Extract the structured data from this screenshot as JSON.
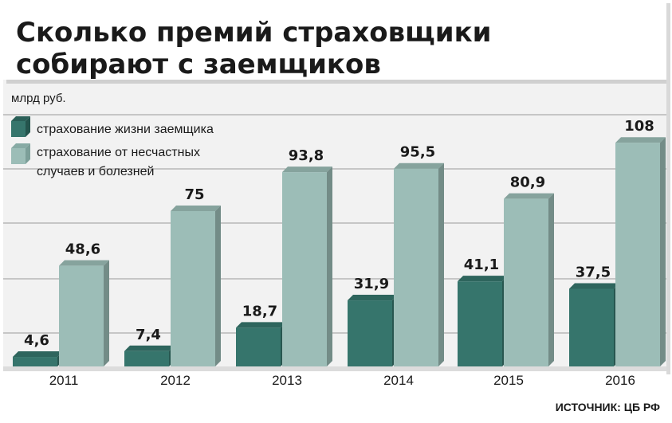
{
  "chart_data": {
    "type": "bar",
    "title": "Сколько премий страховщики собирают с заемщиков",
    "title_lines": [
      "Сколько премий страховщики",
      "собирают с заемщиков"
    ],
    "unit": "млрд руб.",
    "categories": [
      "2011",
      "2012",
      "2013",
      "2014",
      "2015",
      "2016"
    ],
    "series": [
      {
        "name": "страхование жизни заемщика",
        "name_lines": [
          "страхование жизни заемщика"
        ],
        "color": "#36756c",
        "values": [
          4.6,
          7.4,
          18.7,
          31.9,
          41.1,
          37.5
        ],
        "labels": [
          "4,6",
          "7,4",
          "18,7",
          "31,9",
          "41,1",
          "37,5"
        ]
      },
      {
        "name": "страхование от несчастных случаев и болезней",
        "name_lines": [
          "страхование от несчастных",
          "случаев и болезней"
        ],
        "color": "#9cbdb7",
        "values": [
          48.6,
          75,
          93.8,
          95.5,
          80.9,
          108
        ],
        "labels": [
          "48,6",
          "75",
          "93,8",
          "95,5",
          "80,9",
          "108"
        ]
      }
    ],
    "ylim": [
      0,
      110
    ],
    "grid": true,
    "legend_position": "top-left",
    "source": "ИСТОЧНИК: ЦБ РФ",
    "colors": {
      "background": "#f2f2f2",
      "grid": "#9a9a9a",
      "floor": "#dcdcdc"
    }
  }
}
